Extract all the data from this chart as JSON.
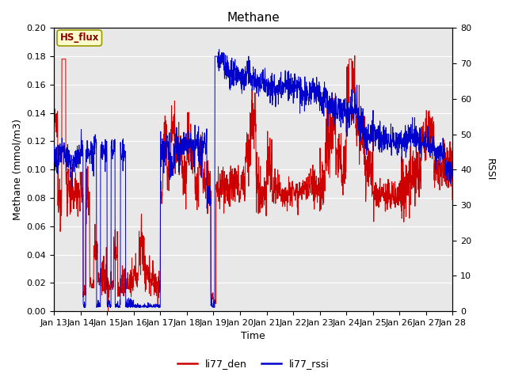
{
  "title": "Methane",
  "ylabel_left": "Methane (mmol/m3)",
  "ylabel_right": "RSSI",
  "xlabel": "Time",
  "ylim_left": [
    0.0,
    0.2
  ],
  "ylim_right": [
    0,
    80
  ],
  "yticks_left": [
    0.0,
    0.02,
    0.04,
    0.06,
    0.08,
    0.1,
    0.12,
    0.14,
    0.16,
    0.18,
    0.2
  ],
  "yticks_right": [
    0,
    10,
    20,
    30,
    40,
    50,
    60,
    70,
    80
  ],
  "xtick_labels": [
    "Jan 13",
    "Jan 14",
    "Jan 15",
    "Jan 16",
    "Jan 17",
    "Jan 18",
    "Jan 19",
    "Jan 20",
    "Jan 21",
    "Jan 22",
    "Jan 23",
    "Jan 24",
    "Jan 25",
    "Jan 26",
    "Jan 27",
    "Jan 28"
  ],
  "color_red": "#cc0000",
  "color_blue": "#0000cc",
  "legend_label_red": "li77_den",
  "legend_label_blue": "li77_rssi",
  "annotation_text": "HS_flux",
  "annotation_facecolor": "#ffffcc",
  "annotation_edgecolor": "#999900",
  "annotation_textcolor": "#880000",
  "bg_color": "#e8e8e8",
  "title_fontsize": 11,
  "axis_fontsize": 9,
  "tick_fontsize": 8,
  "legend_fontsize": 9
}
